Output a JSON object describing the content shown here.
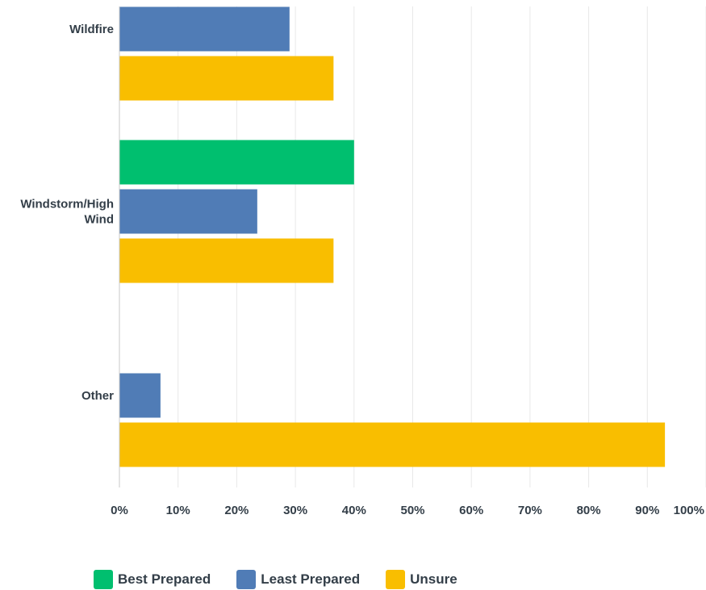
{
  "chart_data": {
    "type": "bar",
    "orientation": "horizontal",
    "categories": [
      "Wildfire",
      "Windstorm/High Wind",
      "Other"
    ],
    "category_lines": [
      [
        "Wildfire"
      ],
      [
        "Windstorm/High",
        "Wind"
      ],
      [
        "Other"
      ]
    ],
    "series": [
      {
        "name": "Best Prepared",
        "color": "#00bf6f",
        "values": [
          0,
          40,
          0
        ]
      },
      {
        "name": "Least Prepared",
        "color": "#507cb6",
        "values": [
          29,
          23.5,
          7
        ]
      },
      {
        "name": "Unsure",
        "color": "#f9be00",
        "values": [
          36.5,
          36.5,
          93
        ]
      }
    ],
    "xlim": [
      0,
      100
    ],
    "xticks": [
      "0%",
      "10%",
      "20%",
      "30%",
      "40%",
      "50%",
      "60%",
      "70%",
      "80%",
      "90%",
      "100%"
    ],
    "grid": true,
    "legend_position": "bottom-left"
  }
}
